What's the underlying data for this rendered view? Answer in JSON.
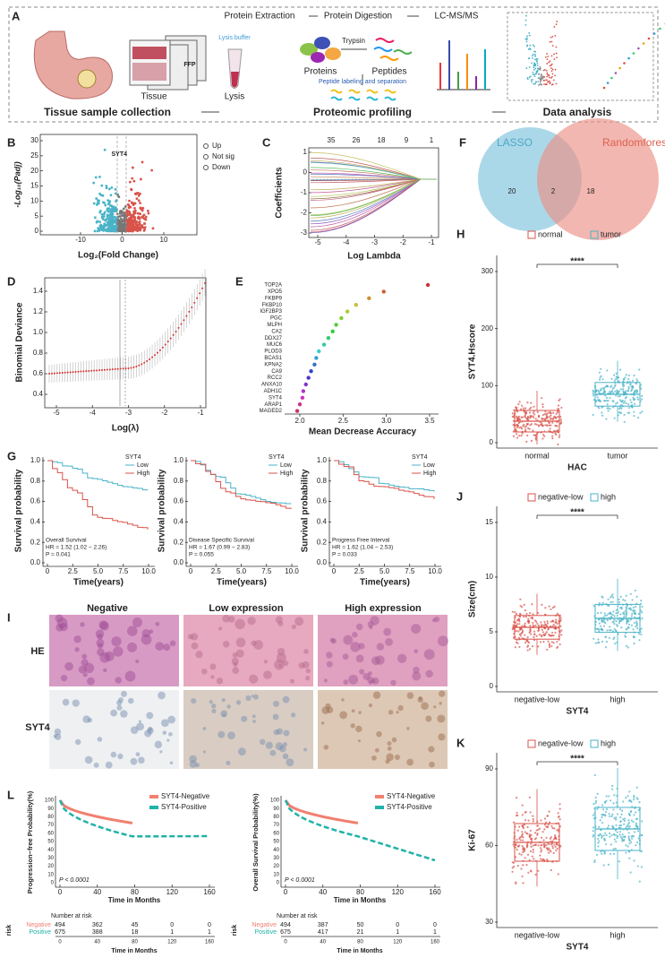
{
  "panels": {
    "A": {
      "letter": "A",
      "tissue": "Tissue",
      "ffpe": "FFP",
      "lysis_buffer": "Lysis buffer",
      "lysis": "Lysis",
      "steps": [
        "Protein Extraction",
        "Protein Digestion",
        "LC-MS/MS"
      ],
      "trypsin": "Trypsin",
      "proteins": "Proteins",
      "peptides": "Peptides",
      "labeling": "Peptide labeling and separation",
      "sections": [
        "Tissue sample collection",
        "Proteomic profiling",
        "Data analysis"
      ]
    },
    "B": {
      "letter": "B",
      "ylabel": "-Log₁₀(Padj)",
      "xlabel": "Log₂(Fold Change)",
      "xticks": [
        "-10",
        "0",
        "10"
      ],
      "yticks": [
        "0",
        "5",
        "10",
        "15",
        "20",
        "25",
        "30"
      ],
      "legend": [
        "Up",
        "Not sig",
        "Down"
      ],
      "gene": "SYT4"
    },
    "C": {
      "letter": "C",
      "ylabel": "Coefficients",
      "xlabel": "Log Lambda",
      "xticks": [
        "-5",
        "-4",
        "-3",
        "-2",
        "-1"
      ],
      "yticks": [
        "-3",
        "-2",
        "-1",
        "0",
        "1"
      ],
      "top": [
        "35",
        "26",
        "18",
        "9",
        "1"
      ]
    },
    "F": {
      "letter": "F",
      "sets": [
        "LASSO",
        "Randomforest"
      ],
      "counts": [
        "20",
        "2",
        "18"
      ]
    },
    "D": {
      "letter": "D",
      "ylabel": "Binomial Deviance",
      "xlabel": "Log(λ)",
      "xticks": [
        "-5",
        "-4",
        "-3",
        "-2",
        "-1"
      ],
      "yticks": [
        "0.4",
        "0.6",
        "0.8",
        "1.0",
        "1.2",
        "1.4"
      ]
    },
    "E": {
      "letter": "E",
      "xlabel": "Mean Decrease Accuracy",
      "xticks": [
        "2.0",
        "2.5",
        "3.0",
        "3.5"
      ],
      "genes": [
        "TOP2A",
        "XPO5",
        "FKBP9",
        "FKBP10",
        "IGF2BP3",
        "PGC",
        "MLPH",
        "CA2",
        "DDX27",
        "MUC6",
        "PLOD3",
        "BCAS1",
        "KPNA2",
        "CA9",
        "RCC2",
        "ANXA10",
        "ADH1C",
        "SYT4",
        "ARAP1",
        "MAGED2"
      ],
      "values": [
        3.48,
        2.97,
        2.8,
        2.65,
        2.55,
        2.48,
        2.42,
        2.38,
        2.33,
        2.28,
        2.22,
        2.19,
        2.17,
        2.13,
        2.1,
        2.07,
        2.04,
        2.03,
        2.0,
        1.97
      ]
    },
    "H": {
      "letter": "H",
      "ylabel": "SYT4.Hscore",
      "xlabel": "HAC",
      "groups": [
        "normal",
        "tumor"
      ],
      "yticks": [
        "0",
        "100",
        "200",
        "300"
      ],
      "sig": "****"
    },
    "G": {
      "letter": "G",
      "ylabel": "Survival probability",
      "xlabel": "Time(years)",
      "legend_title": "SYT4",
      "legend": [
        "Low",
        "High"
      ],
      "xticks": [
        "0",
        "2.5",
        "5.0",
        "7.5",
        "10.0"
      ],
      "yticks": [
        "0.0",
        "0.2",
        "0.4",
        "0.6",
        "0.8",
        "1.0"
      ],
      "plots": [
        {
          "name": "Overall Survival",
          "hr": "HR = 1.52 (1.02 − 2.26)",
          "p": "P = 0.041"
        },
        {
          "name": "Disease Specific Survival",
          "hr": "HR = 1.67 (0.99 − 2.83)",
          "p": "P = 0.055"
        },
        {
          "name": "Progress Free Interval",
          "hr": "HR = 1.62 (1.04 − 2.53)",
          "p": "P = 0.033"
        }
      ]
    },
    "J": {
      "letter": "J",
      "ylabel": "Size(cm)",
      "xlabel": "SYT4",
      "groups": [
        "negative-low",
        "high"
      ],
      "yticks": [
        "0",
        "5",
        "10",
        "15"
      ],
      "sig": "****"
    },
    "I": {
      "letter": "I",
      "columns": [
        "Negative",
        "Low expression",
        "High expression"
      ],
      "rows": [
        "HE",
        "SYT4"
      ]
    },
    "K": {
      "letter": "K",
      "ylabel": "Ki-67",
      "xlabel": "SYT4",
      "groups": [
        "negative-low",
        "high"
      ],
      "yticks": [
        "30",
        "60",
        "90"
      ],
      "sig": "****"
    },
    "L": {
      "letter": "L",
      "xlabel": "Time in Months",
      "xticks": [
        "0",
        "40",
        "80",
        "120",
        "160"
      ],
      "yticks": [
        "0",
        "10",
        "20",
        "30",
        "40",
        "50",
        "60",
        "70",
        "80",
        "90",
        "100"
      ],
      "number_at_risk": "Number at risk",
      "risk_axis": "risk",
      "groups": [
        "Negative",
        "Positive"
      ],
      "plots": [
        {
          "ylabel": "Progression−free Probability(%)",
          "legend": [
            "SYT4-Negative",
            "SYT4-Positive"
          ],
          "p": "P < 0.0001",
          "risk": [
            [
              "494",
              "362",
              "45",
              "0",
              "0"
            ],
            [
              "675",
              "388",
              "18",
              "1",
              "1"
            ]
          ]
        },
        {
          "ylabel": "Overall Survival Probability(%)",
          "legend": [
            "SYT4-Negative",
            "SYT4-Positive"
          ],
          "p": "P < 0.0001",
          "risk": [
            [
              "494",
              "387",
              "50",
              "0",
              "0"
            ],
            [
              "675",
              "417",
              "21",
              "1",
              "1"
            ]
          ]
        }
      ]
    }
  }
}
